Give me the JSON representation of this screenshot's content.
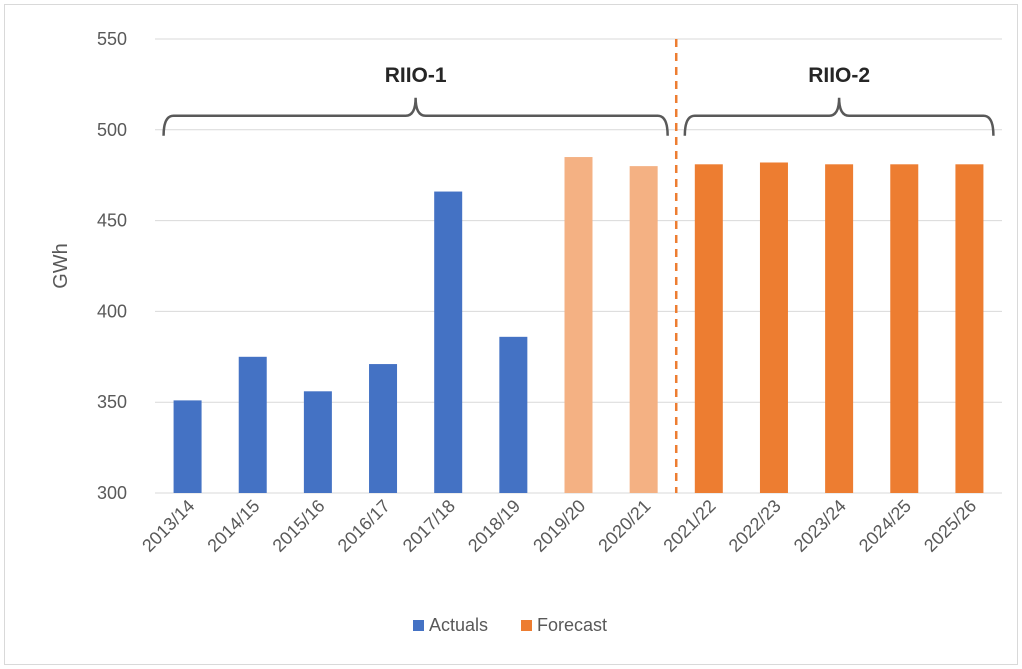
{
  "chart_data": {
    "type": "bar",
    "title": "",
    "xlabel": "",
    "ylabel": "GWh",
    "ylim": [
      300,
      550
    ],
    "yticks": [
      300,
      350,
      400,
      450,
      500,
      550
    ],
    "grid": true,
    "legend_position": "bottom",
    "categories": [
      "2013/14",
      "2014/15",
      "2015/16",
      "2016/17",
      "2017/18",
      "2018/19",
      "2019/20",
      "2020/21",
      "2021/22",
      "2022/23",
      "2023/24",
      "2024/25",
      "2025/26"
    ],
    "values": [
      351,
      375,
      356,
      371,
      466,
      386,
      485,
      480,
      481,
      482,
      481,
      481,
      481
    ],
    "bar_kind": [
      "Actuals",
      "Actuals",
      "Actuals",
      "Actuals",
      "Actuals",
      "Actuals",
      "Forecast-light",
      "Forecast-light",
      "Forecast",
      "Forecast",
      "Forecast",
      "Forecast",
      "Forecast"
    ],
    "colors": {
      "Actuals": "#4472c4",
      "Forecast": "#ed7d31",
      "Forecast-light": "#f4b183"
    },
    "legend": [
      {
        "name": "Actuals",
        "color": "#4472c4"
      },
      {
        "name": "Forecast",
        "color": "#ed7d31"
      }
    ],
    "periods": [
      {
        "label": "RIIO-1",
        "start_index": 0,
        "end_index": 7
      },
      {
        "label": "RIIO-2",
        "start_index": 8,
        "end_index": 12
      }
    ],
    "divider_after_index": 7
  }
}
